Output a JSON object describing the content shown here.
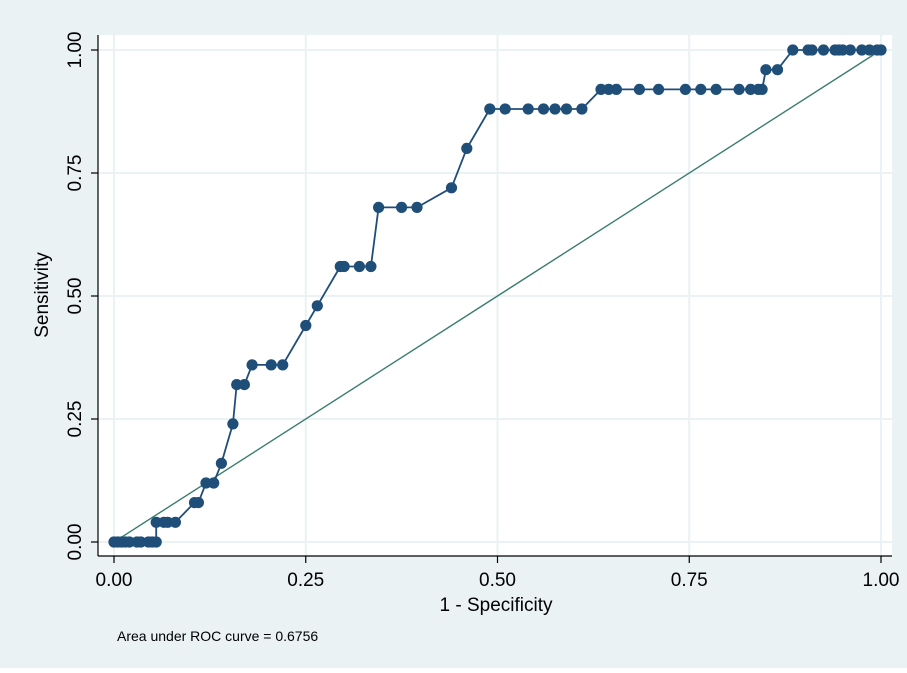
{
  "chart_data": {
    "type": "line",
    "xlabel": "1 - Specificity",
    "ylabel": "Sensitivity",
    "xlim": [
      0,
      1
    ],
    "ylim": [
      0,
      1
    ],
    "xticks": [
      "0.00",
      "0.25",
      "0.50",
      "0.75",
      "1.00"
    ],
    "yticks": [
      "0.00",
      "0.25",
      "0.50",
      "0.75",
      "1.00"
    ],
    "xtick_values": [
      0,
      0.25,
      0.5,
      0.75,
      1
    ],
    "ytick_values": [
      0,
      0.25,
      0.5,
      0.75,
      1
    ],
    "grid": true,
    "note": "Area under ROC curve = 0.6756",
    "colors": {
      "roc": "#1f4e79",
      "reference": "#3a7d6e",
      "outer_background": "#eaf2f3"
    },
    "series": [
      {
        "values": [
          [
            0.0,
            0.0
          ],
          [
            0.005,
            0.0
          ],
          [
            0.01,
            0.0
          ],
          [
            0.015,
            0.0
          ],
          [
            0.02,
            0.0
          ],
          [
            0.03,
            0.0
          ],
          [
            0.035,
            0.0
          ],
          [
            0.045,
            0.0
          ],
          [
            0.05,
            0.0
          ],
          [
            0.055,
            0.0
          ],
          [
            0.055,
            0.04
          ],
          [
            0.065,
            0.04
          ],
          [
            0.07,
            0.04
          ],
          [
            0.08,
            0.04
          ],
          [
            0.105,
            0.08
          ],
          [
            0.11,
            0.08
          ],
          [
            0.12,
            0.12
          ],
          [
            0.13,
            0.12
          ],
          [
            0.14,
            0.16
          ],
          [
            0.155,
            0.24
          ],
          [
            0.16,
            0.32
          ],
          [
            0.17,
            0.32
          ],
          [
            0.18,
            0.36
          ],
          [
            0.205,
            0.36
          ],
          [
            0.22,
            0.36
          ],
          [
            0.25,
            0.44
          ],
          [
            0.265,
            0.48
          ],
          [
            0.295,
            0.56
          ],
          [
            0.3,
            0.56
          ],
          [
            0.32,
            0.56
          ],
          [
            0.335,
            0.56
          ],
          [
            0.345,
            0.68
          ],
          [
            0.375,
            0.68
          ],
          [
            0.395,
            0.68
          ],
          [
            0.44,
            0.72
          ],
          [
            0.46,
            0.8
          ],
          [
            0.49,
            0.88
          ],
          [
            0.51,
            0.88
          ],
          [
            0.54,
            0.88
          ],
          [
            0.56,
            0.88
          ],
          [
            0.575,
            0.88
          ],
          [
            0.59,
            0.88
          ],
          [
            0.61,
            0.88
          ],
          [
            0.635,
            0.92
          ],
          [
            0.645,
            0.92
          ],
          [
            0.655,
            0.92
          ],
          [
            0.685,
            0.92
          ],
          [
            0.71,
            0.92
          ],
          [
            0.745,
            0.92
          ],
          [
            0.765,
            0.92
          ],
          [
            0.785,
            0.92
          ],
          [
            0.815,
            0.92
          ],
          [
            0.83,
            0.92
          ],
          [
            0.84,
            0.92
          ],
          [
            0.845,
            0.92
          ],
          [
            0.85,
            0.96
          ],
          [
            0.865,
            0.96
          ],
          [
            0.885,
            1.0
          ],
          [
            0.905,
            1.0
          ],
          [
            0.91,
            1.0
          ],
          [
            0.925,
            1.0
          ],
          [
            0.94,
            1.0
          ],
          [
            0.945,
            1.0
          ],
          [
            0.95,
            1.0
          ],
          [
            0.96,
            1.0
          ],
          [
            0.975,
            1.0
          ],
          [
            0.985,
            1.0
          ],
          [
            0.995,
            1.0
          ],
          [
            1.0,
            1.0
          ]
        ]
      },
      {
        "values": [
          [
            0,
            0
          ],
          [
            1,
            1
          ]
        ]
      }
    ]
  }
}
